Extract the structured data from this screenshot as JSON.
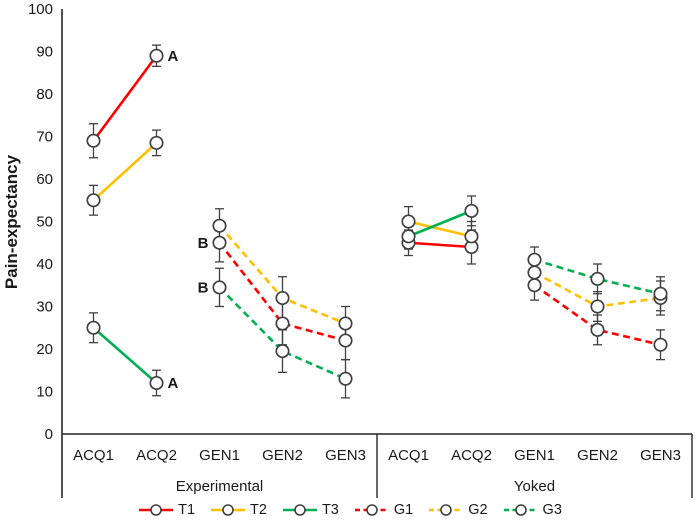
{
  "chart_data": {
    "type": "line",
    "title": "",
    "ylabel": "Pain-expectancy",
    "ylim": [
      0,
      100
    ],
    "yticks": [
      0,
      10,
      20,
      30,
      40,
      50,
      60,
      70,
      80,
      90,
      100
    ],
    "grid": false,
    "legend_position": "bottom",
    "groups": [
      {
        "label": "Experimental",
        "categories": [
          "ACQ1",
          "ACQ2",
          "GEN1",
          "GEN2",
          "GEN3"
        ]
      },
      {
        "label": "Yoked",
        "categories": [
          "ACQ1",
          "ACQ2",
          "GEN1",
          "GEN2",
          "GEN3"
        ]
      }
    ],
    "style": {
      "marker_stroke": "#404040",
      "error_bar_color": "#404040",
      "axis_color": "#262626",
      "text_color": "#1a1a1a",
      "marker_fill": "#ffffff"
    },
    "series": [
      {
        "name": "T1",
        "color": "#fe0000",
        "dash": "solid",
        "segments": [
          [
            {
              "slot": 0,
              "value": 69,
              "err": 4
            },
            {
              "slot": 1,
              "value": 89,
              "err": 2.5
            }
          ],
          [
            {
              "slot": 5,
              "value": 45,
              "err": 3
            },
            {
              "slot": 6,
              "value": 44,
              "err": 4
            }
          ]
        ]
      },
      {
        "name": "T2",
        "color": "#ffc000",
        "dash": "solid",
        "segments": [
          [
            {
              "slot": 0,
              "value": 55,
              "err": 3.5
            },
            {
              "slot": 1,
              "value": 68.5,
              "err": 3
            }
          ],
          [
            {
              "slot": 5,
              "value": 50,
              "err": 3.5
            },
            {
              "slot": 6,
              "value": 46.5,
              "err": 3.5
            }
          ]
        ]
      },
      {
        "name": "T3",
        "color": "#00b050",
        "dash": "solid",
        "segments": [
          [
            {
              "slot": 0,
              "value": 25,
              "err": 3.5
            },
            {
              "slot": 1,
              "value": 12,
              "err": 3
            }
          ],
          [
            {
              "slot": 5,
              "value": 46.5,
              "err": 3
            },
            {
              "slot": 6,
              "value": 52.5,
              "err": 3.5
            }
          ]
        ]
      },
      {
        "name": "G1",
        "color": "#fe0000",
        "dash": "dashed",
        "segments": [
          [
            {
              "slot": 2,
              "value": 45,
              "err": 4.5
            },
            {
              "slot": 3,
              "value": 26,
              "err": 5
            },
            {
              "slot": 4,
              "value": 22,
              "err": 4.5
            }
          ],
          [
            {
              "slot": 7,
              "value": 35,
              "err": 3.5
            },
            {
              "slot": 8,
              "value": 24.5,
              "err": 3.5
            },
            {
              "slot": 9,
              "value": 21,
              "err": 3.5
            }
          ]
        ]
      },
      {
        "name": "G2",
        "color": "#ffc000",
        "dash": "dashed",
        "segments": [
          [
            {
              "slot": 2,
              "value": 49,
              "err": 4
            },
            {
              "slot": 3,
              "value": 32,
              "err": 5
            },
            {
              "slot": 4,
              "value": 26,
              "err": 4
            }
          ],
          [
            {
              "slot": 7,
              "value": 38,
              "err": 3.5
            },
            {
              "slot": 8,
              "value": 30,
              "err": 3.5
            },
            {
              "slot": 9,
              "value": 32,
              "err": 4
            }
          ]
        ]
      },
      {
        "name": "G3",
        "color": "#00b050",
        "dash": "dashed",
        "segments": [
          [
            {
              "slot": 2,
              "value": 34.5,
              "err": 4.5
            },
            {
              "slot": 3,
              "value": 19.5,
              "err": 5
            },
            {
              "slot": 4,
              "value": 13,
              "err": 4.5
            }
          ],
          [
            {
              "slot": 7,
              "value": 41,
              "err": 3
            },
            {
              "slot": 8,
              "value": 36.5,
              "err": 3.5
            },
            {
              "slot": 9,
              "value": 33,
              "err": 4
            }
          ]
        ]
      }
    ],
    "annotations": [
      {
        "text": "A",
        "slot": 1,
        "value": 89,
        "side": "right"
      },
      {
        "text": "A",
        "slot": 1,
        "value": 12,
        "side": "right"
      },
      {
        "text": "B",
        "slot": 2,
        "value": 45,
        "side": "left"
      },
      {
        "text": "B",
        "slot": 2,
        "value": 34.5,
        "side": "left"
      }
    ]
  }
}
